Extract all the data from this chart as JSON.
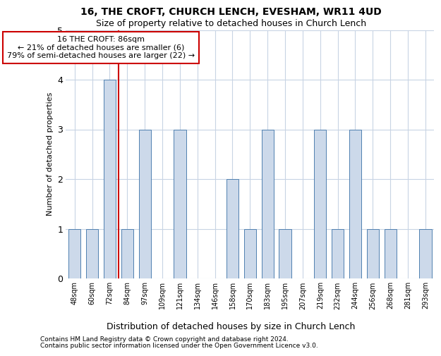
{
  "title1": "16, THE CROFT, CHURCH LENCH, EVESHAM, WR11 4UD",
  "title2": "Size of property relative to detached houses in Church Lench",
  "xlabel": "Distribution of detached houses by size in Church Lench",
  "ylabel": "Number of detached properties",
  "footer1": "Contains HM Land Registry data © Crown copyright and database right 2024.",
  "footer2": "Contains public sector information licensed under the Open Government Licence v3.0.",
  "annotation_line1": "16 THE CROFT: 86sqm",
  "annotation_line2": "← 21% of detached houses are smaller (6)",
  "annotation_line3": "79% of semi-detached houses are larger (22) →",
  "bar_labels": [
    "48sqm",
    "60sqm",
    "72sqm",
    "84sqm",
    "97sqm",
    "109sqm",
    "121sqm",
    "134sqm",
    "146sqm",
    "158sqm",
    "170sqm",
    "183sqm",
    "195sqm",
    "207sqm",
    "219sqm",
    "232sqm",
    "244sqm",
    "256sqm",
    "268sqm",
    "281sqm",
    "293sqm"
  ],
  "bar_values": [
    1,
    1,
    4,
    1,
    3,
    0,
    3,
    0,
    0,
    2,
    1,
    3,
    1,
    0,
    3,
    1,
    3,
    1,
    1,
    0,
    1
  ],
  "bar_color": "#ccd9ea",
  "bar_edge_color": "#5080b0",
  "red_line_color": "#cc0000",
  "annotation_box_color": "#ffffff",
  "annotation_box_edge_color": "#cc0000",
  "ylim": [
    0,
    5
  ],
  "yticks": [
    0,
    1,
    2,
    3,
    4,
    5
  ],
  "bg_color": "#ffffff",
  "grid_color": "#c8d4e4",
  "title1_fontsize": 10,
  "title2_fontsize": 9,
  "xlabel_fontsize": 9,
  "ylabel_fontsize": 8,
  "tick_fontsize": 7,
  "annotation_fontsize": 8,
  "footer_fontsize": 6.5,
  "bar_width": 0.7
}
